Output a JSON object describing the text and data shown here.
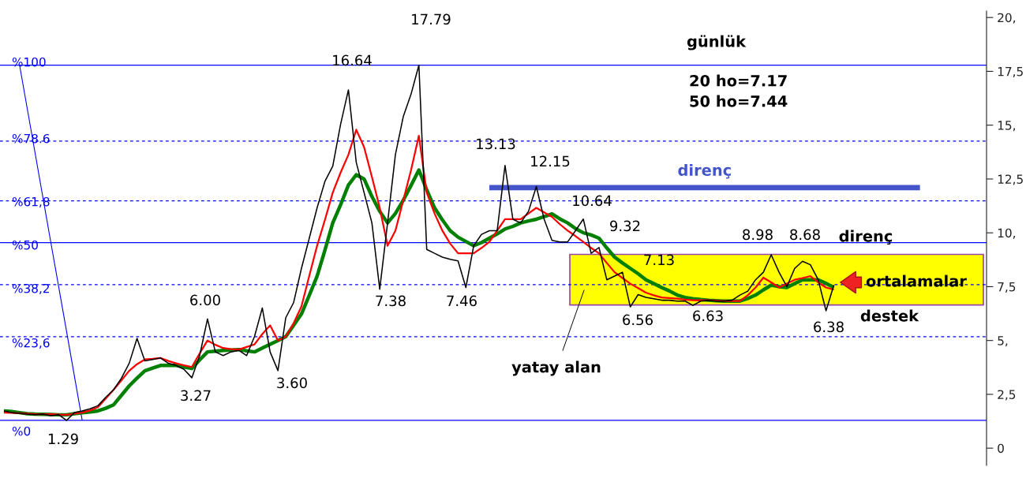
{
  "chart_data": {
    "type": "line",
    "title": "günlük",
    "categories": [
      null,
      null,
      null,
      null,
      null,
      null,
      null,
      null,
      null,
      null,
      null,
      null,
      null,
      null,
      null,
      null,
      null,
      null,
      null,
      null,
      null,
      null,
      null,
      null,
      null,
      null,
      null,
      null,
      null,
      null,
      null,
      null,
      null,
      null,
      null,
      null,
      null,
      null,
      null,
      null,
      null,
      null,
      null,
      null,
      null,
      null,
      null,
      null,
      null,
      null,
      null,
      null,
      null,
      null,
      null,
      null,
      null,
      null,
      null,
      null,
      null,
      null,
      null,
      null,
      null,
      null,
      null,
      null,
      null,
      null,
      null,
      null,
      null,
      null,
      null,
      null,
      null,
      null,
      null,
      null,
      null,
      null,
      null,
      null,
      null,
      null,
      null,
      null,
      null,
      null,
      null,
      null,
      null,
      null,
      null,
      null,
      null,
      null,
      null,
      null,
      null,
      null,
      null,
      null,
      null,
      null,
      null,
      null,
      null,
      null,
      null,
      null,
      null,
      null,
      null,
      null,
      null,
      null,
      null,
      null,
      null,
      null,
      null,
      null,
      null,
      null
    ],
    "tick_labels": "y",
    "ylim": [
      -0.8,
      20.3
    ],
    "yticks": [
      {
        "value": 0,
        "label": "0"
      },
      {
        "value": 2.5,
        "label": "2,5"
      },
      {
        "value": 5,
        "label": "5,"
      },
      {
        "value": 7.5,
        "label": "7,5"
      },
      {
        "value": 10,
        "label": "10,"
      },
      {
        "value": 12.5,
        "label": "12,5"
      },
      {
        "value": 15,
        "label": "15,"
      },
      {
        "value": 17.5,
        "label": "17,5"
      },
      {
        "value": 20,
        "label": "20,"
      }
    ],
    "series": [
      {
        "color": "#0000ff",
        "values": [
          null,
          null,
          17.79,
          15.73,
          13.67,
          11.6,
          9.54,
          7.48,
          5.42,
          3.35,
          1.29,
          null,
          null,
          null,
          null,
          null,
          null,
          null,
          null,
          null,
          null,
          null,
          null,
          null,
          null,
          null,
          null,
          null,
          null,
          null,
          null,
          null,
          null,
          null,
          null,
          null,
          null,
          null,
          null,
          null,
          null,
          null,
          null,
          null,
          null,
          null,
          null,
          null,
          null,
          null,
          null,
          null,
          null,
          null,
          null,
          null,
          null,
          null,
          null,
          null,
          null,
          null,
          null,
          null,
          null,
          null,
          null,
          null,
          null,
          null,
          null,
          null,
          null,
          null,
          null,
          null,
          null,
          null,
          null,
          null,
          null,
          null,
          null,
          null,
          null,
          null,
          null,
          null,
          null,
          null,
          null,
          null,
          null,
          null,
          null,
          null,
          null,
          null,
          null,
          null,
          null,
          null,
          null,
          null,
          null,
          null,
          null,
          null,
          null,
          null,
          null,
          null,
          null,
          null,
          null,
          null,
          null,
          null,
          null,
          null,
          null,
          null,
          null,
          null,
          null,
          null
        ]
      },
      {
        "color": "#000000",
        "values": [
          1.73,
          1.65,
          1.62,
          1.58,
          1.55,
          1.58,
          1.51,
          1.55,
          1.29,
          1.65,
          1.73,
          1.83,
          1.97,
          2.36,
          2.71,
          3.24,
          3.94,
          5.1,
          4.05,
          4.12,
          4.19,
          3.94,
          3.84,
          3.66,
          3.27,
          4.3,
          6.0,
          4.47,
          4.3,
          4.47,
          4.54,
          4.3,
          5.18,
          6.51,
          4.47,
          3.6,
          6.06,
          6.76,
          8.35,
          9.75,
          11.16,
          12.39,
          13.1,
          15.04,
          16.64,
          13.27,
          11.87,
          10.46,
          7.38,
          10.46,
          13.63,
          15.39,
          16.44,
          17.79,
          9.23,
          9.05,
          8.87,
          8.77,
          8.7,
          7.46,
          9.4,
          9.93,
          10.1,
          10.1,
          13.13,
          10.63,
          10.46,
          11.0,
          12.15,
          10.63,
          9.65,
          9.58,
          9.58,
          10.1,
          10.64,
          9.05,
          9.32,
          7.82,
          7.99,
          8.17,
          6.56,
          7.13,
          7.0,
          6.94,
          6.87,
          6.87,
          6.83,
          6.83,
          6.63,
          6.83,
          6.87,
          6.83,
          6.83,
          6.87,
          7.11,
          7.29,
          7.82,
          8.17,
          8.98,
          8.17,
          7.5,
          8.35,
          8.68,
          8.52,
          7.82,
          6.38,
          7.57,
          null,
          null,
          null,
          null,
          null,
          null,
          null,
          null,
          null,
          null,
          null,
          null,
          null,
          null,
          null,
          null,
          null,
          null,
          null
        ]
      },
      {
        "color": "#ff0000",
        "values": [
          1.65,
          1.64,
          1.62,
          1.6,
          1.58,
          1.58,
          1.58,
          1.56,
          1.55,
          1.6,
          1.65,
          1.75,
          1.9,
          2.3,
          2.71,
          3.15,
          3.59,
          3.9,
          4.12,
          4.15,
          4.19,
          4.05,
          3.94,
          3.85,
          3.77,
          4.4,
          5.0,
          4.8,
          4.65,
          4.6,
          4.58,
          4.7,
          4.82,
          5.3,
          5.7,
          5.0,
          5.18,
          5.8,
          6.58,
          8.0,
          9.4,
          10.6,
          11.87,
          12.8,
          13.63,
          14.79,
          13.98,
          12.6,
          11.16,
          9.4,
          10.1,
          11.5,
          12.92,
          14.51,
          11.87,
          10.9,
          10.1,
          9.5,
          9.05,
          9.05,
          9.05,
          9.3,
          9.58,
          10.1,
          10.63,
          10.63,
          10.63,
          10.9,
          11.16,
          10.95,
          10.74,
          10.4,
          10.1,
          9.85,
          9.58,
          9.3,
          9.05,
          8.6,
          8.17,
          7.9,
          7.64,
          7.43,
          7.22,
          7.1,
          7.0,
          6.97,
          6.94,
          6.9,
          6.87,
          6.87,
          6.87,
          6.85,
          6.83,
          6.83,
          6.83,
          7.1,
          7.46,
          7.92,
          7.7,
          7.46,
          7.64,
          7.82,
          7.9,
          7.99,
          7.7,
          7.46,
          7.36,
          null,
          null,
          null,
          null,
          null,
          null,
          null,
          null,
          null,
          null,
          null,
          null,
          null,
          null,
          null,
          null,
          null,
          null,
          null
        ]
      },
      {
        "color": "#008000",
        "values": [
          1.73,
          1.7,
          1.65,
          1.6,
          1.58,
          1.57,
          1.56,
          1.55,
          1.55,
          1.6,
          1.64,
          1.68,
          1.73,
          1.85,
          2.01,
          2.45,
          2.89,
          3.25,
          3.59,
          3.72,
          3.84,
          3.84,
          3.84,
          3.77,
          3.7,
          4.1,
          4.47,
          4.5,
          4.54,
          4.56,
          4.58,
          4.52,
          4.47,
          4.65,
          4.82,
          5.0,
          5.18,
          5.7,
          6.23,
          7.1,
          7.99,
          9.2,
          10.46,
          11.3,
          12.22,
          12.7,
          12.5,
          11.69,
          11.0,
          10.46,
          10.9,
          11.51,
          12.2,
          12.92,
          12.0,
          11.16,
          10.6,
          10.1,
          9.8,
          9.6,
          9.4,
          9.55,
          9.75,
          9.95,
          10.18,
          10.3,
          10.46,
          10.55,
          10.63,
          10.75,
          10.88,
          10.65,
          10.46,
          10.2,
          10.0,
          9.9,
          9.75,
          9.3,
          8.87,
          8.6,
          8.35,
          8.1,
          7.82,
          7.64,
          7.46,
          7.3,
          7.11,
          7.0,
          6.94,
          6.9,
          6.87,
          6.85,
          6.83,
          6.83,
          6.83,
          6.95,
          7.11,
          7.35,
          7.57,
          7.5,
          7.46,
          7.64,
          7.82,
          7.82,
          7.82,
          7.65,
          7.46,
          null,
          null,
          null,
          null,
          null,
          null,
          null,
          null,
          null,
          null,
          null,
          null,
          null,
          null,
          null,
          null,
          null,
          null,
          null
        ]
      },
      {
        "color": "#4455cc",
        "name": "direnç",
        "values": [
          null,
          null,
          null,
          null,
          null,
          null,
          null,
          null,
          null,
          null,
          null,
          null,
          null,
          null,
          null,
          null,
          null,
          null,
          null,
          null,
          null,
          null,
          null,
          null,
          null,
          null,
          null,
          null,
          null,
          null,
          null,
          null,
          null,
          null,
          null,
          null,
          null,
          null,
          null,
          null,
          null,
          null,
          null,
          null,
          null,
          null,
          null,
          null,
          null,
          null,
          null,
          null,
          null,
          null,
          null,
          null,
          null,
          null,
          null,
          null,
          null,
          null,
          12.1,
          12.1,
          12.1,
          12.1,
          12.1,
          12.1,
          12.1,
          12.1,
          12.1,
          12.1,
          12.1,
          12.1,
          12.1,
          12.1,
          12.1,
          12.1,
          12.1,
          12.1,
          12.1,
          12.1,
          12.1,
          12.1,
          12.1,
          12.1,
          12.1,
          12.1,
          12.1,
          12.1,
          12.1,
          12.1,
          12.1,
          12.1,
          12.1,
          12.1,
          12.1,
          12.1,
          12.1,
          12.1,
          12.1,
          12.1,
          12.1,
          12.1,
          12.1,
          12.1,
          12.1,
          12.1,
          12.1,
          12.1,
          12.1,
          12.1,
          12.1,
          12.1,
          12.1,
          12.1,
          12.1,
          12.1,
          null,
          null,
          null,
          null,
          null,
          null,
          null,
          null
        ]
      }
    ],
    "bands": [
      {
        "axis": "y",
        "from": 6.65,
        "to": 9.0,
        "color": "#ffff00"
      }
    ],
    "ref_lines": [
      {
        "axis": "y",
        "value": 17.79,
        "color": "#0000ff",
        "line_style": "solid"
      },
      {
        "axis": "y",
        "value": 14.26,
        "color": "#0000ff",
        "line_style": "dashed"
      },
      {
        "axis": "y",
        "value": 11.49,
        "color": "#0000ff",
        "line_style": "dashed"
      },
      {
        "axis": "y",
        "value": 9.54,
        "color": "#0000ff",
        "line_style": "solid"
      },
      {
        "axis": "y",
        "value": 7.59,
        "color": "#0000ff",
        "line_style": "dashed"
      },
      {
        "axis": "y",
        "value": 5.18,
        "color": "#0000ff",
        "line_style": "dashed"
      },
      {
        "axis": "y",
        "value": 1.29,
        "color": "#0000ff",
        "line_style": "solid"
      }
    ],
    "annotations": [
      "17.79",
      "16.64",
      "13.13",
      "12.15",
      "10.64",
      "9.32",
      "7.13",
      "8.98",
      "8.68",
      "6.00",
      "1.29",
      "3.27",
      "3.60",
      "7.38",
      "7.46",
      "6.56",
      "6.63",
      "6.38",
      "%100",
      "%78.6",
      "%61,8",
      "%50",
      "%38,2",
      "%23,6",
      "%0",
      "yatay alan",
      "direnç",
      "ortalamalar",
      "destek",
      "20 ho=7.17",
      "50 ho=7.44"
    ]
  }
}
